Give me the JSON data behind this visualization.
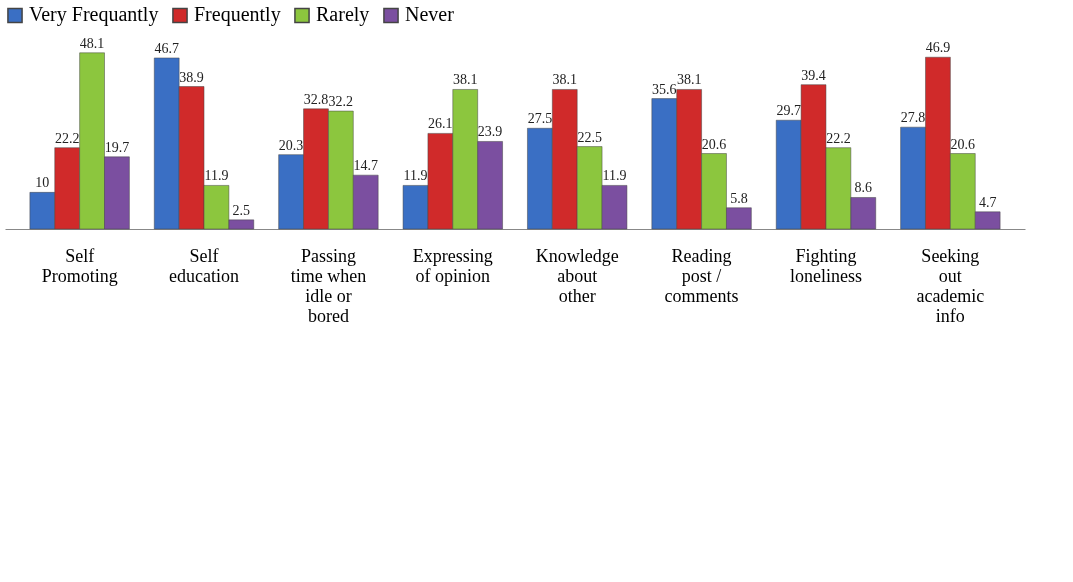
{
  "chart_data": {
    "type": "bar",
    "categories": [
      "Self Promoting",
      "Self education",
      "Passing time when idle or bored",
      "Expressing of opinion",
      "Knowledge about other",
      "Reading post / comments",
      "Fighting loneliness",
      "Seeking out academic info"
    ],
    "series": [
      {
        "name": "Very Frequantly",
        "color": "#3a6fc4",
        "values": [
          10,
          46.7,
          20.3,
          11.9,
          27.5,
          35.6,
          29.7,
          27.8
        ]
      },
      {
        "name": "Frequently",
        "color": "#d02a2a",
        "values": [
          22.2,
          38.9,
          32.8,
          26.1,
          38.1,
          38.1,
          39.4,
          46.9
        ]
      },
      {
        "name": "Rarely",
        "color": "#8cc63e",
        "values": [
          48.1,
          11.9,
          32.2,
          38.1,
          22.5,
          20.6,
          22.2,
          20.6
        ]
      },
      {
        "name": "Never",
        "color": "#7b4fa0",
        "values": [
          19.7,
          2.5,
          14.7,
          23.9,
          11.9,
          5.8,
          8.6,
          4.7
        ]
      }
    ],
    "data_labels": true,
    "legend": "top",
    "grid": false
  }
}
